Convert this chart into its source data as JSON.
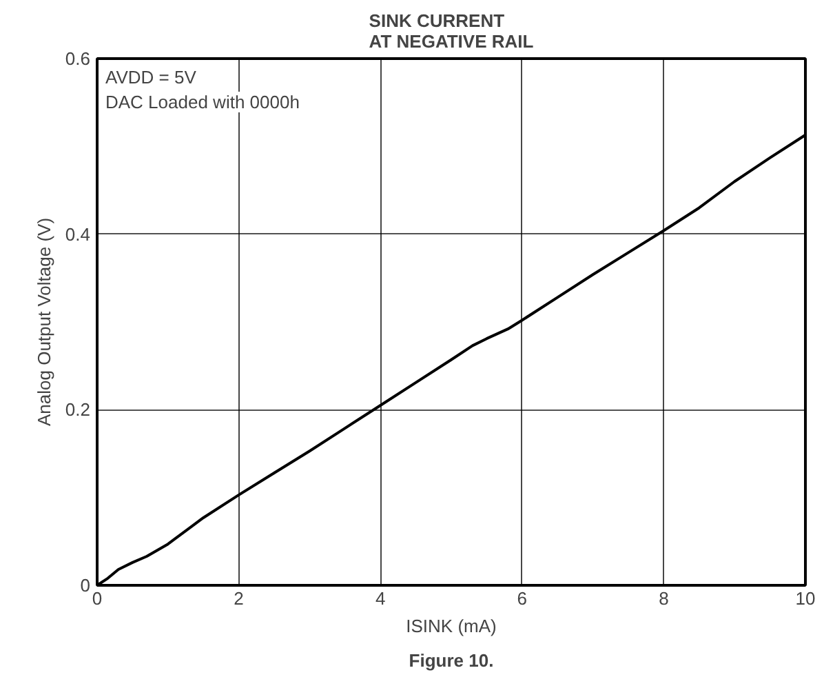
{
  "chart_data": {
    "type": "line",
    "title": "SINK CURRENT\nAT NEGATIVE RAIL",
    "xlabel": "ISINK (mA)",
    "ylabel": "Analog Output Voltage (V)",
    "annotations": [
      "AVDD = 5V",
      "DAC Loaded with 0000h",
      "Figure 10."
    ],
    "x": [
      0,
      0.15,
      0.3,
      0.5,
      0.7,
      1,
      1.5,
      2,
      2.5,
      3,
      3.5,
      4,
      4.5,
      5,
      5.3,
      5.5,
      5.8,
      6,
      6.5,
      7,
      7.5,
      8,
      8.5,
      9,
      9.5,
      10
    ],
    "series": [
      {
        "color": "#000000",
        "values": [
          0,
          0.008,
          0.018,
          0.026,
          0.033,
          0.047,
          0.077,
          0.103,
          0.128,
          0.153,
          0.179,
          0.205,
          0.231,
          0.257,
          0.273,
          0.281,
          0.292,
          0.302,
          0.328,
          0.354,
          0.379,
          0.404,
          0.43,
          0.46,
          0.487,
          0.513
        ]
      }
    ],
    "xlim": [
      0,
      10
    ],
    "ylim": [
      0,
      0.6
    ],
    "xticks": [
      0,
      2,
      4,
      6,
      8,
      10
    ],
    "yticks": [
      0,
      0.2,
      0.4,
      0.6
    ],
    "grid": true,
    "marker": "none",
    "line_style": "solid"
  }
}
